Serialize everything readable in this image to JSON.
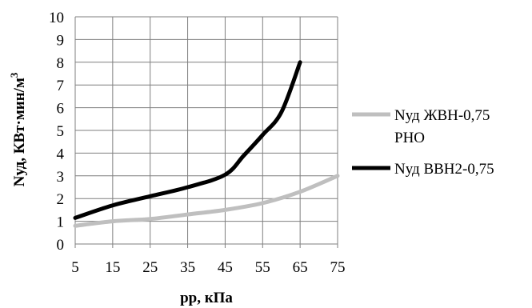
{
  "chart_data": {
    "type": "line",
    "xlabel": "pp, кПа",
    "ylabel": "Nуд, КВт·мин/м",
    "ylabel_sup": "3",
    "xlim": [
      5,
      75
    ],
    "ylim": [
      0,
      10
    ],
    "x_ticks": [
      5,
      15,
      25,
      35,
      45,
      55,
      65,
      75
    ],
    "y_ticks": [
      0,
      1,
      2,
      3,
      4,
      5,
      6,
      7,
      8,
      9,
      10
    ],
    "grid": true,
    "legend_position": "right",
    "series": [
      {
        "name": "Nуд ЖВН-0,75 РНО",
        "legend_lines": [
          "Nуд ЖВН-0,75",
          "РНО"
        ],
        "color": "#bfbfbf",
        "x": [
          5,
          15,
          25,
          35,
          45,
          55,
          65,
          75
        ],
        "y": [
          0.8,
          1.0,
          1.1,
          1.3,
          1.5,
          1.8,
          2.3,
          3.0
        ]
      },
      {
        "name": "Nуд ВВН2-0,75",
        "legend_lines": [
          "Nуд ВВН2-0,75"
        ],
        "color": "#000000",
        "x": [
          5,
          15,
          25,
          35,
          45,
          50,
          55,
          60,
          65
        ],
        "y": [
          1.15,
          1.7,
          2.1,
          2.5,
          3.05,
          3.9,
          4.8,
          5.8,
          8.0
        ]
      }
    ]
  }
}
